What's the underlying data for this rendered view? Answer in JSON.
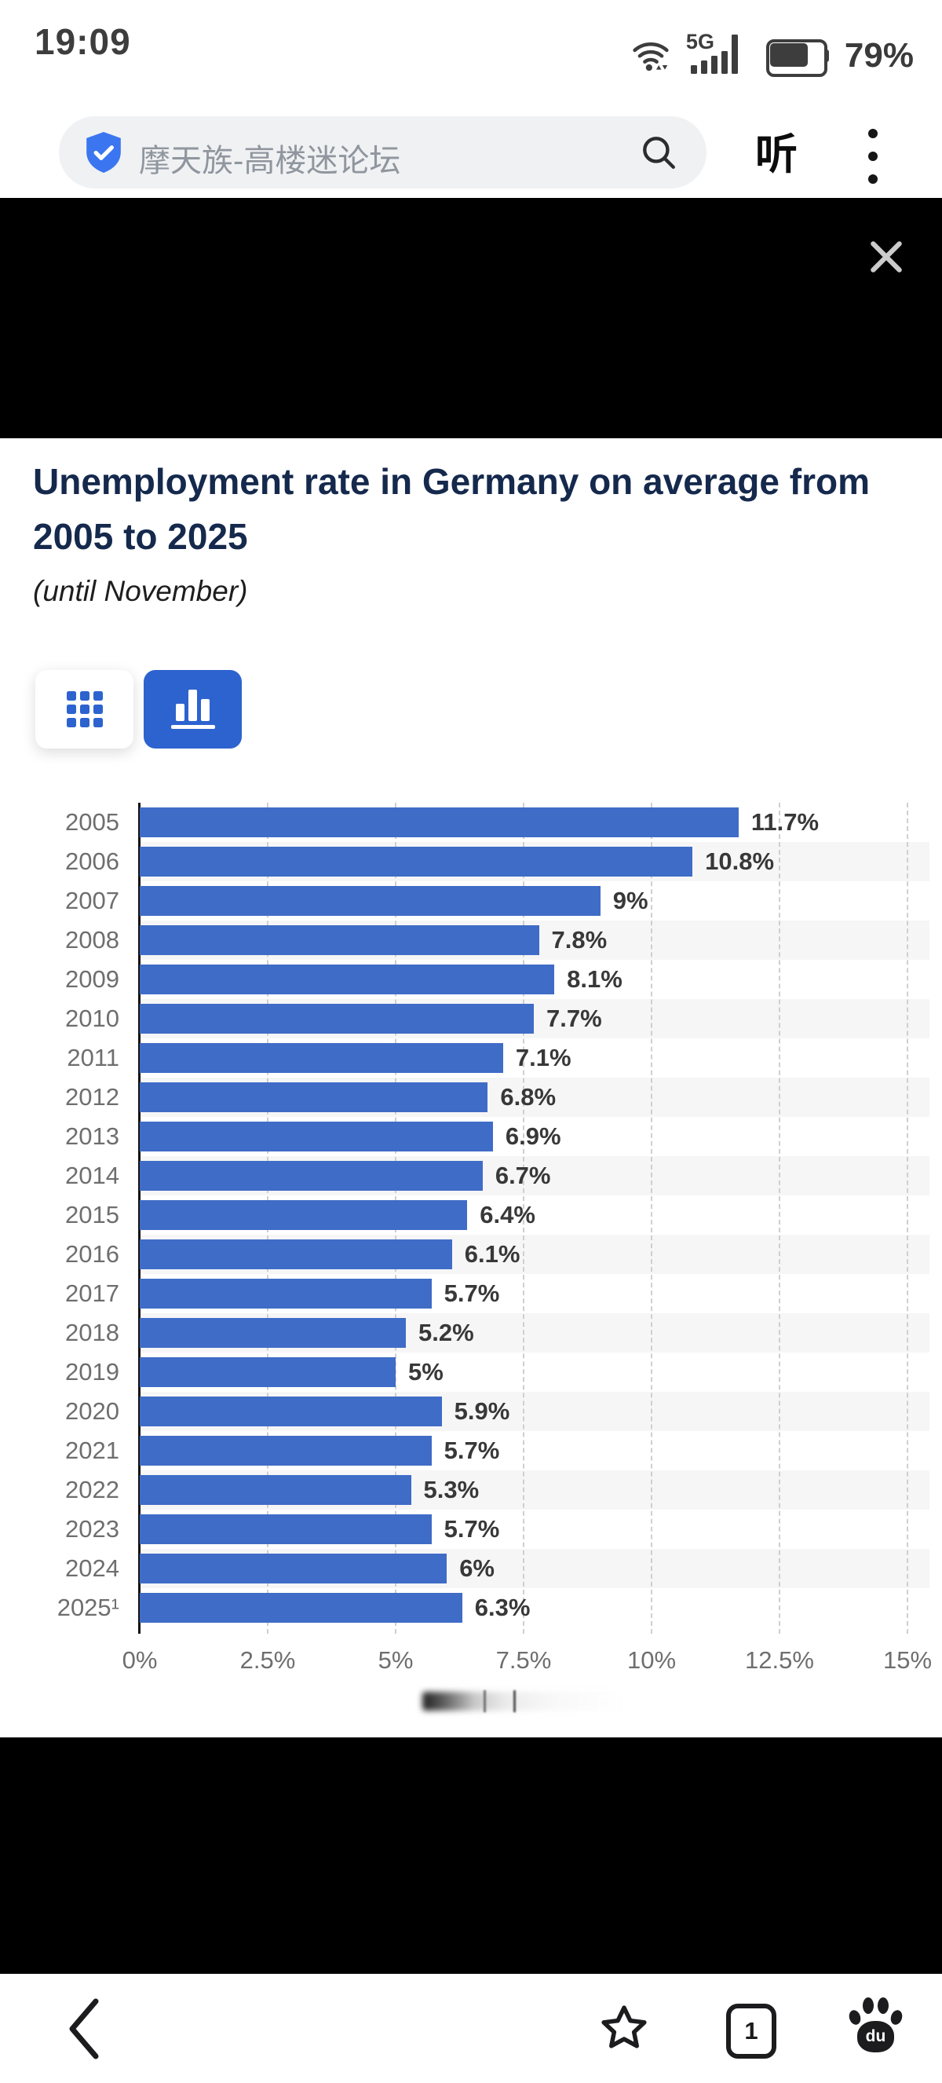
{
  "status_bar": {
    "time": "19:09",
    "network_label": "5G",
    "battery_percent": "79%"
  },
  "search_bar": {
    "query": "摩天族-高楼迷论坛",
    "listen_label": "听"
  },
  "chart_header": {
    "title": "Unemployment rate in Germany on average from 2005 to 2025",
    "subtitle": "(until November)"
  },
  "chart_data": {
    "type": "bar",
    "orientation": "horizontal",
    "title": "Unemployment rate in Germany on average from 2005 to 2025 (until November)",
    "categories": [
      "2005",
      "2006",
      "2007",
      "2008",
      "2009",
      "2010",
      "2011",
      "2012",
      "2013",
      "2014",
      "2015",
      "2016",
      "2017",
      "2018",
      "2019",
      "2020",
      "2021",
      "2022",
      "2023",
      "2024",
      "2025¹"
    ],
    "values": [
      11.7,
      10.8,
      9,
      7.8,
      8.1,
      7.7,
      7.1,
      6.8,
      6.9,
      6.7,
      6.4,
      6.1,
      5.7,
      5.2,
      5,
      5.9,
      5.7,
      5.3,
      5.7,
      6,
      6.3
    ],
    "value_labels": [
      "11.7%",
      "10.8%",
      "9%",
      "7.8%",
      "8.1%",
      "7.7%",
      "7.1%",
      "6.8%",
      "6.9%",
      "6.7%",
      "6.4%",
      "6.1%",
      "5.7%",
      "5.2%",
      "5%",
      "5.9%",
      "5.7%",
      "5.3%",
      "5.7%",
      "6%",
      "6.3%"
    ],
    "x_ticks": [
      "0%",
      "2.5%",
      "5%",
      "7.5%",
      "10%",
      "12.5%",
      "15%"
    ],
    "xlim": [
      0,
      15
    ],
    "grid": "dashed-vertical",
    "zebra_rows": "odd",
    "bar_color": "#3f6cc7",
    "legend": "none"
  },
  "colors": {
    "bar_blue": "#3f6cc7",
    "button_blue": "#2d63cf",
    "badge_blue": "#3b76f0",
    "title_navy": "#15294d",
    "label_gray": "#6e6e6e",
    "value_gray": "#383838"
  },
  "bottom_nav": {
    "tab_count": "1",
    "paw_label": "du"
  }
}
